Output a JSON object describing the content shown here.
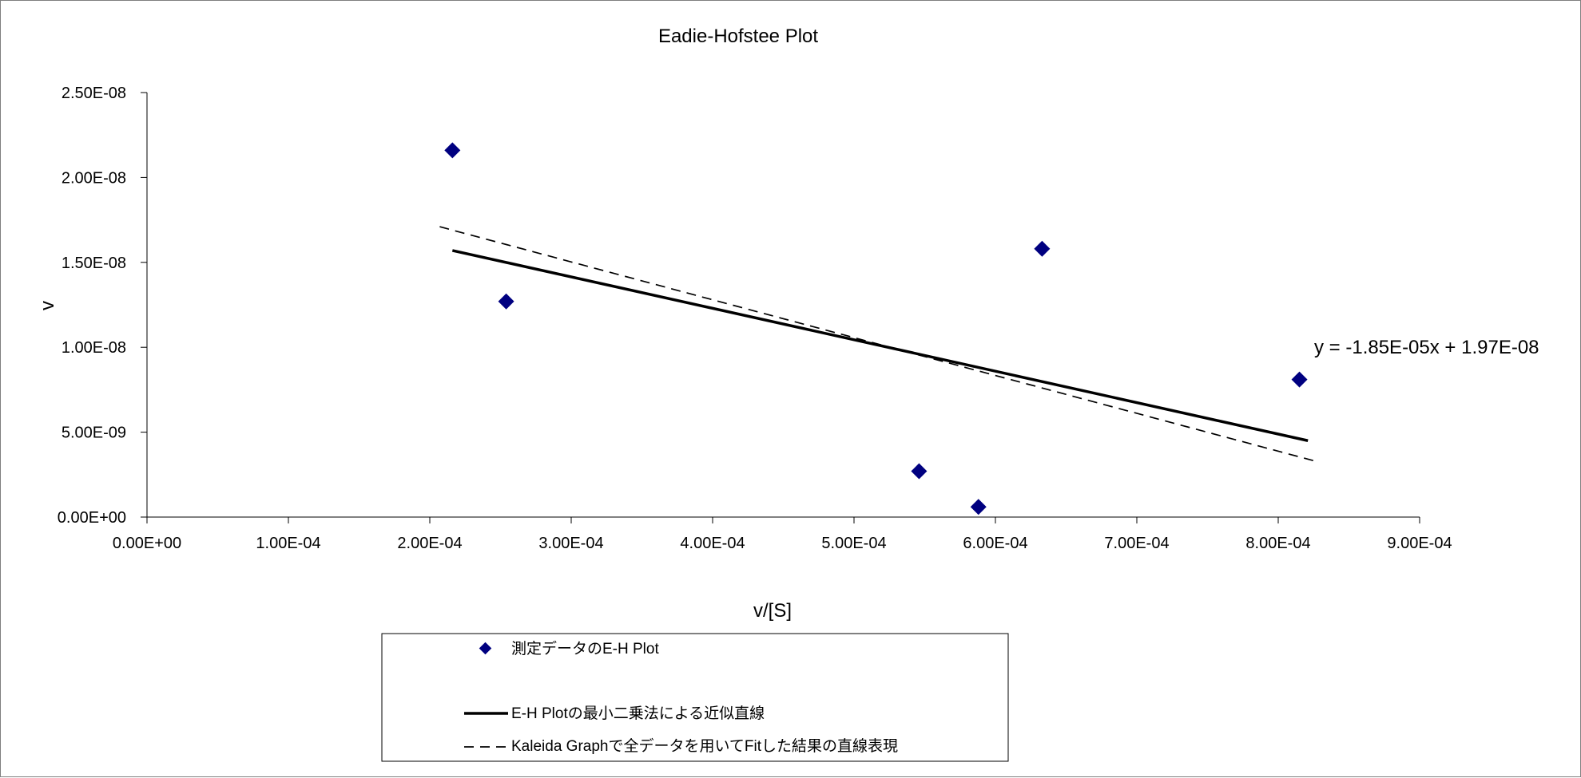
{
  "chart_data": {
    "type": "scatter",
    "title": "Eadie-Hofstee Plot",
    "xlabel": "v/[S]",
    "ylabel": "v",
    "xlim": [
      0,
      0.0009
    ],
    "ylim": [
      0,
      2.5e-08
    ],
    "x_ticks": [
      0,
      0.0001,
      0.0002,
      0.0003,
      0.0004,
      0.0005,
      0.0006,
      0.0007,
      0.0008,
      0.0009
    ],
    "x_tick_labels": [
      "0.00E+00",
      "1.00E-04",
      "2.00E-04",
      "3.00E-04",
      "4.00E-04",
      "5.00E-04",
      "6.00E-04",
      "7.00E-04",
      "8.00E-04",
      "9.00E-04"
    ],
    "y_ticks": [
      0,
      5e-09,
      1e-08,
      1.5e-08,
      2e-08,
      2.5e-08
    ],
    "y_tick_labels": [
      "0.00E+00",
      "5.00E-09",
      "1.00E-08",
      "1.50E-08",
      "2.00E-08",
      "2.50E-08"
    ],
    "grid": false,
    "legend_position": "bottom",
    "series": [
      {
        "name": "測定データのE-H Plot",
        "kind": "scatter",
        "marker": "diamond",
        "color": "#000080",
        "points": [
          {
            "x": 0.000216,
            "y": 2.16e-08
          },
          {
            "x": 0.000254,
            "y": 1.27e-08
          },
          {
            "x": 0.000546,
            "y": 2.7e-09
          },
          {
            "x": 0.000588,
            "y": 6e-10
          },
          {
            "x": 0.000633,
            "y": 1.58e-08
          },
          {
            "x": 0.000815,
            "y": 8.1e-09
          }
        ]
      },
      {
        "name": "E-H Plotの最小二乗法による近似直線",
        "kind": "line",
        "style": "solid",
        "color": "#000000",
        "points": [
          {
            "x": 0.000216,
            "y": 1.57e-08
          },
          {
            "x": 0.000821,
            "y": 4.5e-09
          }
        ]
      },
      {
        "name": "Kaleida Graphで全データを用いてFitした結果の直線表現",
        "kind": "line",
        "style": "dashed",
        "color": "#000000",
        "points": [
          {
            "x": 0.000207,
            "y": 1.71e-08
          },
          {
            "x": 0.000826,
            "y": 3.3e-09
          }
        ]
      }
    ],
    "annotations": [
      {
        "text": "y = -1.85E-05x + 1.97E-08"
      }
    ]
  }
}
